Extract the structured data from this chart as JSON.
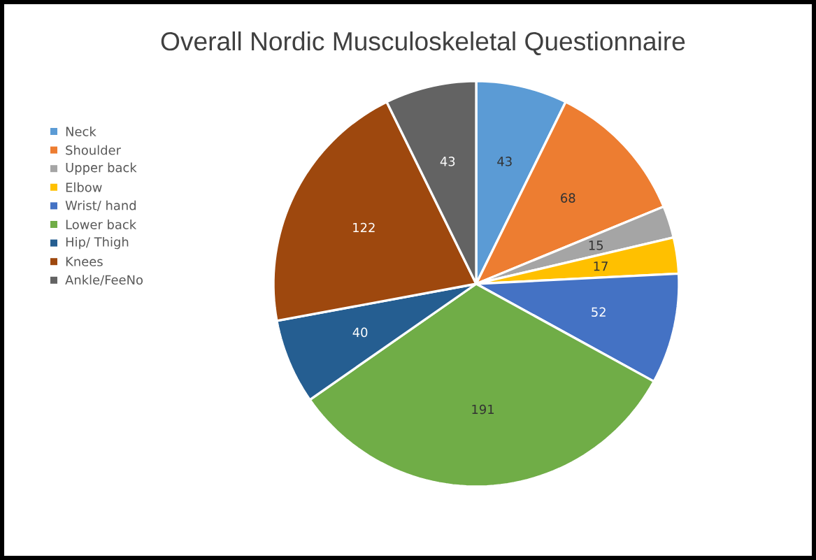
{
  "chart_data": {
    "type": "pie",
    "title": "Overall Nordic Musculoskeletal Questionnaire",
    "categories": [
      "Neck",
      "Shoulder",
      "Upper back",
      "Elbow",
      "Wrist/ hand",
      "Lower back",
      "Hip/ Thigh",
      "Knees",
      "Ankle/FeeNo"
    ],
    "values": [
      43,
      68,
      15,
      17,
      52,
      191,
      40,
      122,
      43
    ],
    "colors": [
      "#5b9bd5",
      "#ed7d31",
      "#a5a5a5",
      "#ffc000",
      "#4472c4",
      "#70ad47",
      "#255e91",
      "#9e480e",
      "#636363"
    ],
    "data_labels": true,
    "legend": "left"
  }
}
